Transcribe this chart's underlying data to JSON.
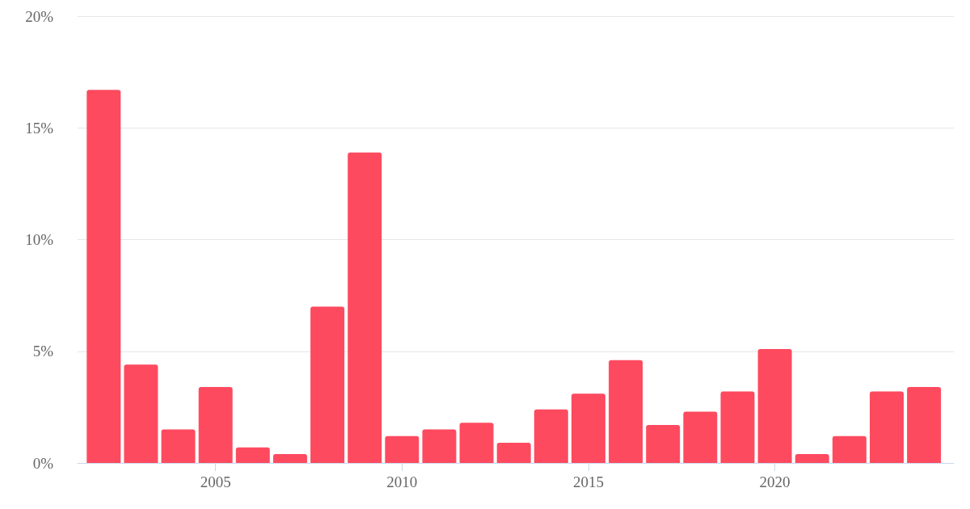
{
  "chart_data": {
    "type": "bar",
    "x": [
      2002,
      2003,
      2004,
      2005,
      2006,
      2007,
      2008,
      2009,
      2010,
      2011,
      2012,
      2013,
      2014,
      2015,
      2016,
      2017,
      2018,
      2019,
      2020,
      2021,
      2022,
      2023,
      2024
    ],
    "values": [
      16.7,
      4.4,
      1.5,
      3.4,
      0.7,
      0.4,
      7.0,
      13.9,
      1.2,
      1.5,
      1.8,
      0.9,
      2.4,
      3.1,
      4.6,
      1.7,
      2.3,
      3.2,
      5.1,
      0.4,
      1.2,
      3.2,
      3.4
    ],
    "color": "#fe4a5f",
    "xlim": [
      2001.3,
      2024.8
    ],
    "xticks": [
      2005,
      2010,
      2015,
      2020
    ],
    "ylim": [
      0,
      20
    ],
    "yticks": [
      {
        "value": 0,
        "label": "0%"
      },
      {
        "value": 5,
        "label": "5%"
      },
      {
        "value": 10,
        "label": "10%"
      },
      {
        "value": 15,
        "label": "15%"
      },
      {
        "value": 20,
        "label": "20%"
      }
    ],
    "grid": "y"
  }
}
